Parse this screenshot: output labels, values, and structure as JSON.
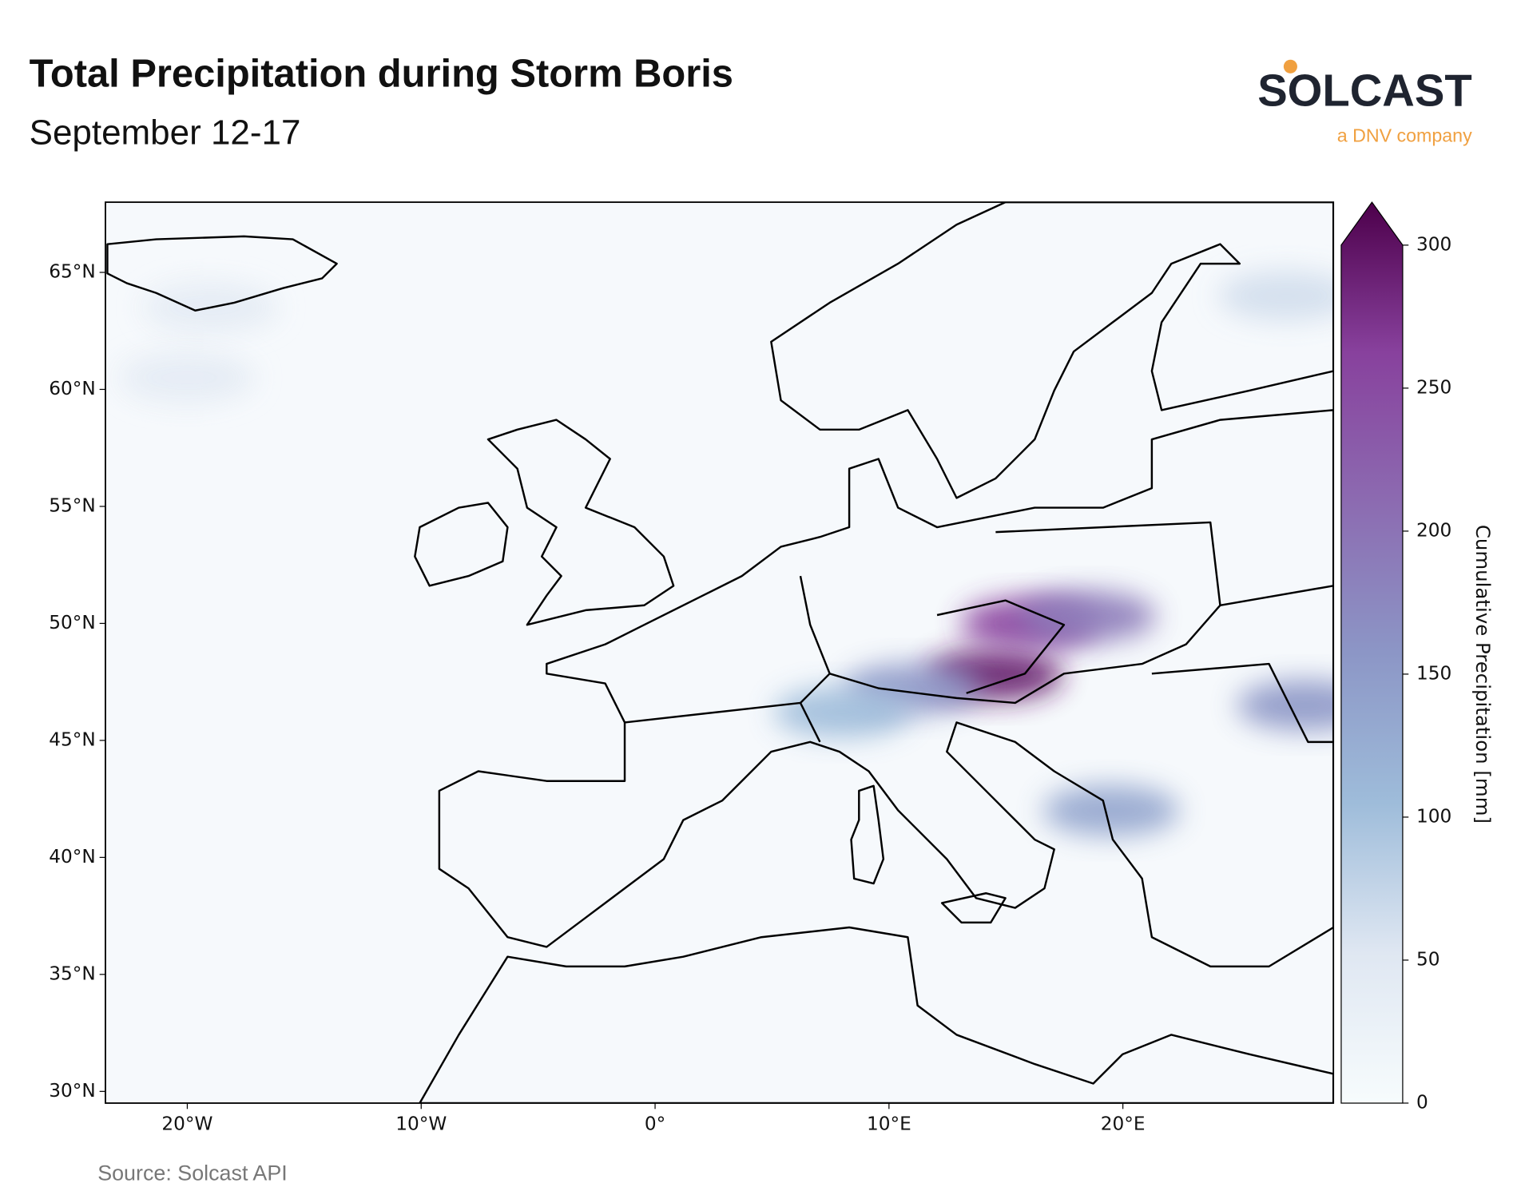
{
  "chart_data": {
    "type": "map",
    "title": "Total Precipitation during Storm Boris",
    "subtitle": "September 12-17",
    "logo": "SOLCAST",
    "logo_tagline": "a DNV company",
    "source": "Source: Solcast API",
    "xlim": [
      -23.5,
      29
    ],
    "ylim": [
      29.5,
      68
    ],
    "xticks": [
      {
        "value": -20,
        "label": "20°W"
      },
      {
        "value": -10,
        "label": "10°W"
      },
      {
        "value": 0,
        "label": "0°"
      },
      {
        "value": 10,
        "label": "10°E"
      },
      {
        "value": 20,
        "label": "20°E"
      }
    ],
    "yticks": [
      {
        "value": 30,
        "label": "30°N"
      },
      {
        "value": 35,
        "label": "35°N"
      },
      {
        "value": 40,
        "label": "40°N"
      },
      {
        "value": 45,
        "label": "45°N"
      },
      {
        "value": 50,
        "label": "50°N"
      },
      {
        "value": 55,
        "label": "55°N"
      },
      {
        "value": 60,
        "label": "60°N"
      },
      {
        "value": 65,
        "label": "65°N"
      }
    ],
    "colorbar_label": "Cumulative Precipitation [mm]",
    "clim": [
      0,
      300
    ],
    "cticks": [
      0,
      50,
      100,
      150,
      200,
      250,
      300
    ],
    "extend": "max",
    "colormap": [
      "#f7fcfd",
      "#dfe7f2",
      "#9ebcda",
      "#8c96c6",
      "#8c6bb1",
      "#88419d",
      "#4d004b"
    ],
    "field": [
      {
        "lon": 14.5,
        "lat": 47.8,
        "value": 280
      },
      {
        "lon": 16,
        "lat": 50,
        "value": 250
      },
      {
        "lon": 18.5,
        "lat": 50.3,
        "value": 180
      },
      {
        "lon": 11,
        "lat": 47.2,
        "value": 150
      },
      {
        "lon": 27.8,
        "lat": 46.5,
        "value": 150
      },
      {
        "lon": 19.5,
        "lat": 42,
        "value": 130
      },
      {
        "lon": 8,
        "lat": 46.2,
        "value": 100
      },
      {
        "lon": 27,
        "lat": 64,
        "value": 60
      },
      {
        "lon": -19,
        "lat": 63.5,
        "value": 40
      },
      {
        "lon": -20,
        "lat": 60.5,
        "value": 40
      }
    ]
  }
}
